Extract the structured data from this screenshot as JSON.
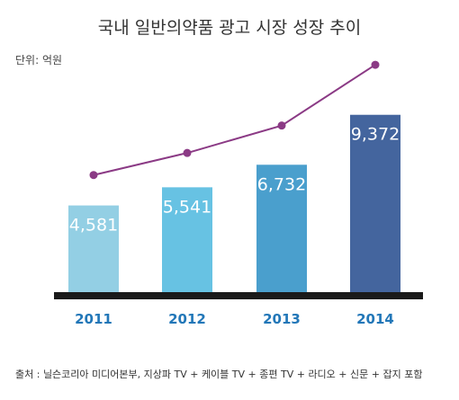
{
  "title": "국내 일반의약품 광고 시장 성장 추이",
  "unit": "단위: 억원",
  "source": "출처 : 닐슨코리아 미디어본부, 지상파 TV +  케이블 TV + 종편 TV + 라디오 + 신문 + 잡지 포함",
  "chart_data": {
    "type": "bar",
    "title": "국내 일반의약품 광고 시장 성장 추이",
    "categories": [
      "2011",
      "2012",
      "2013",
      "2014"
    ],
    "values": [
      4581,
      5541,
      6732,
      9372
    ],
    "value_labels": [
      "4,581",
      "5,541",
      "6,732",
      "9,372"
    ],
    "ylim": [
      0,
      10000
    ],
    "bar_colors": [
      "#93cfe4",
      "#67c2e3",
      "#4a9fcd",
      "#44659e"
    ],
    "trend_line": {
      "values": [
        4581,
        5541,
        6732,
        9372
      ],
      "color": "#8b3a85"
    },
    "grid": false,
    "axis_color": "#1a1a1a",
    "tick_color": "#2277b8",
    "label_color": "#ffffff"
  }
}
